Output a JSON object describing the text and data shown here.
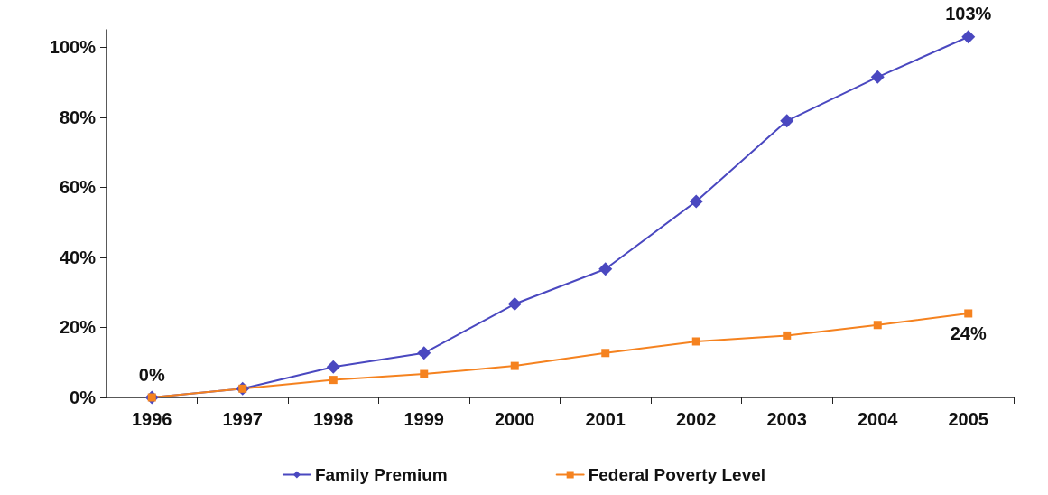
{
  "chart_data": {
    "type": "line",
    "categories": [
      "1996",
      "1997",
      "1998",
      "1999",
      "2000",
      "2001",
      "2002",
      "2003",
      "2004",
      "2005"
    ],
    "series": [
      {
        "name": "Family Premium",
        "color": "#4a48c0",
        "marker": "diamond",
        "values": [
          0,
          2.5,
          8.7,
          12.7,
          26.7,
          36.7,
          56,
          79,
          91.5,
          103
        ],
        "value_labels": [
          "0%",
          null,
          null,
          null,
          null,
          null,
          null,
          null,
          null,
          "103%"
        ]
      },
      {
        "name": "Federal Poverty Level",
        "color": "#f5821f",
        "marker": "square",
        "values": [
          0,
          2.5,
          5,
          6.7,
          9,
          12.7,
          16,
          17.7,
          20.7,
          24
        ],
        "value_labels": [
          null,
          null,
          null,
          null,
          null,
          null,
          null,
          null,
          null,
          "24%"
        ]
      }
    ],
    "ylim": [
      0,
      105
    ],
    "yticks": [
      {
        "value": 0,
        "label": "0%"
      },
      {
        "value": 20,
        "label": "20%"
      },
      {
        "value": 40,
        "label": "40%"
      },
      {
        "value": 60,
        "label": "60%"
      },
      {
        "value": 80,
        "label": "80%"
      },
      {
        "value": 100,
        "label": "100%"
      }
    ],
    "grid": false,
    "legend": "bottom",
    "line_style": "solid"
  }
}
